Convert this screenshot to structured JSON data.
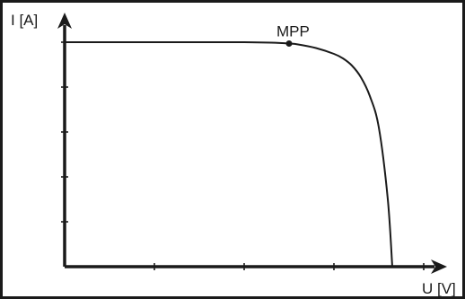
{
  "chart_data": {
    "type": "line",
    "title": "",
    "xlabel": "U [V]",
    "ylabel": "I [A]",
    "xlim": [
      0,
      4
    ],
    "ylim": [
      0,
      5
    ],
    "x_tick_count": 4,
    "y_tick_count": 5,
    "show_tick_labels": false,
    "grid": false,
    "series": [
      {
        "x": [
          0,
          0.5,
          1.0,
          1.5,
          2.0,
          2.3,
          2.5,
          2.6,
          2.8,
          3.0,
          3.1,
          3.2,
          3.3,
          3.4,
          3.5,
          3.6,
          3.65
        ],
        "y": [
          5.0,
          5.0,
          5.0,
          5.0,
          5.0,
          4.99,
          4.97,
          4.95,
          4.87,
          4.74,
          4.64,
          4.48,
          4.22,
          3.8,
          3.1,
          1.5,
          0.0
        ]
      }
    ],
    "annotations": [
      {
        "label": "MPP",
        "x": 2.5,
        "y": 4.97
      }
    ]
  }
}
